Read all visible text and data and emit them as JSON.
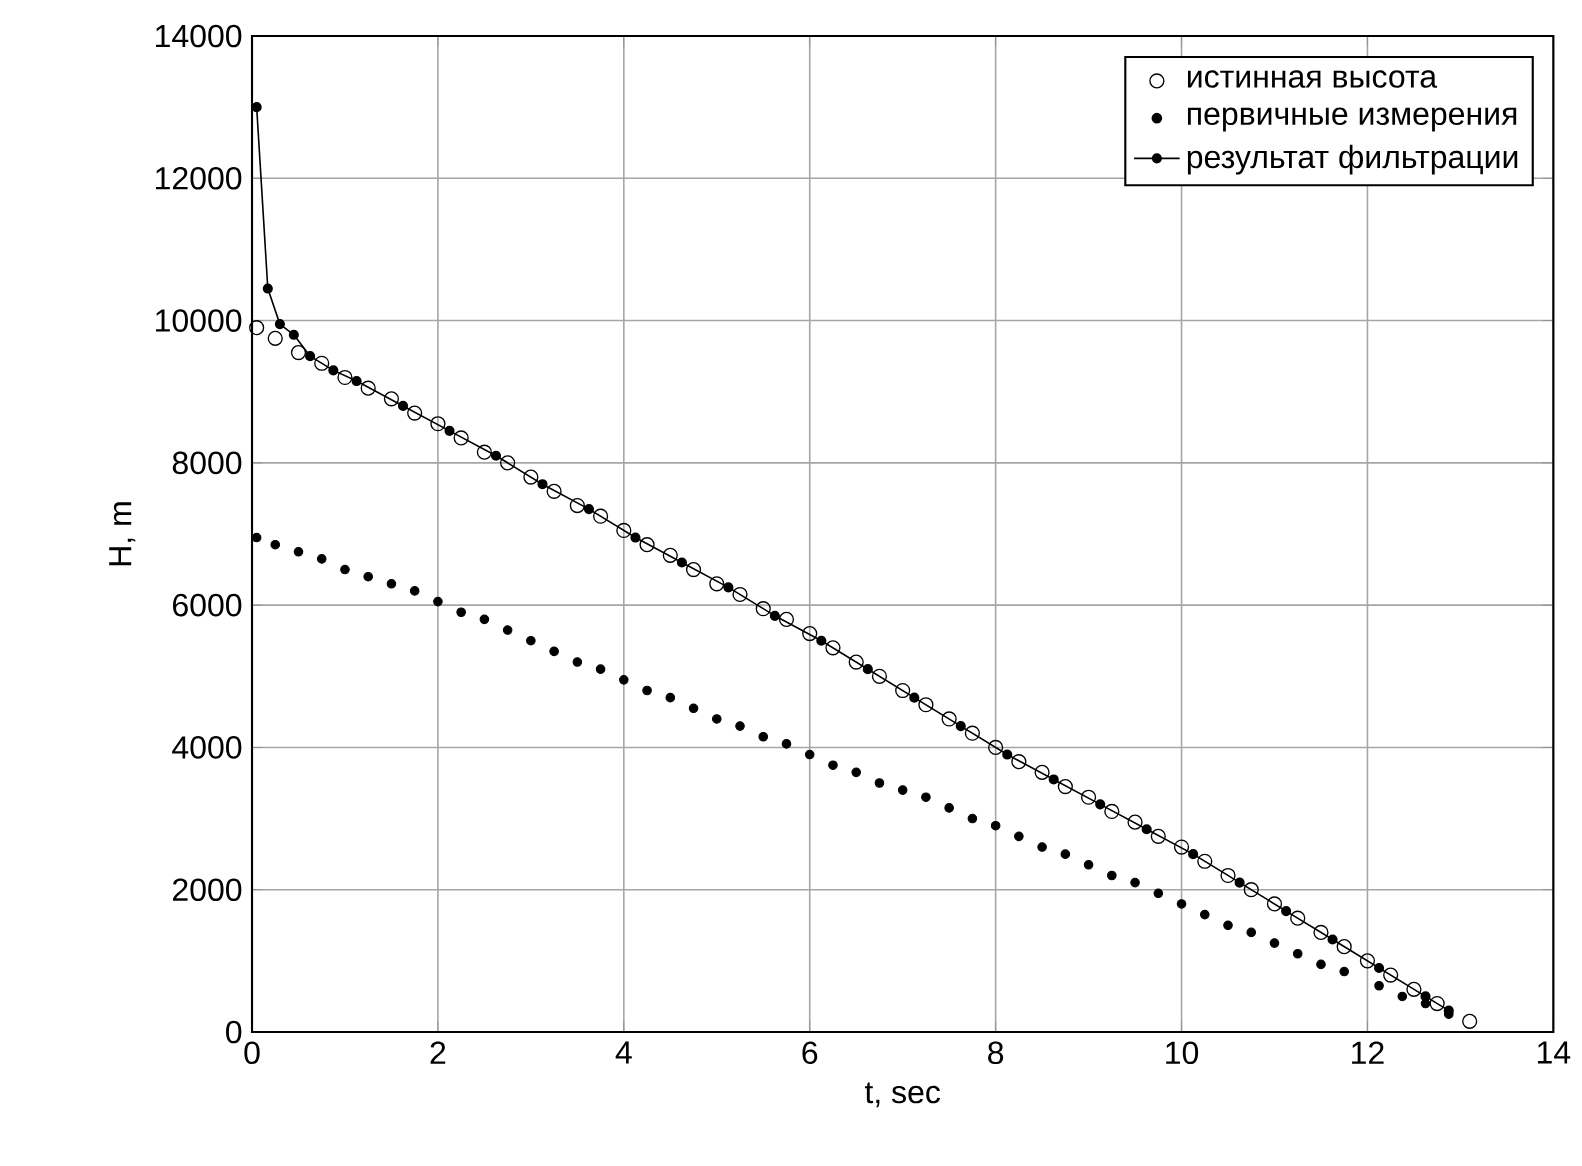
{
  "chart_data": {
    "type": "scatter",
    "xlabel": "t, sec",
    "ylabel": "H, m",
    "xlim": [
      0,
      14
    ],
    "ylim": [
      0,
      14000
    ],
    "xticks": [
      0,
      2,
      4,
      6,
      8,
      10,
      12,
      14
    ],
    "yticks": [
      0,
      2000,
      4000,
      6000,
      8000,
      10000,
      12000,
      14000
    ],
    "grid": true,
    "legend": "top right",
    "series": [
      {
        "name": "истинная высота",
        "type": "scatter",
        "marker": "circle",
        "color": "#000000",
        "x": [
          0.05,
          0.25,
          0.5,
          0.75,
          1.0,
          1.25,
          1.5,
          1.75,
          2.0,
          2.25,
          2.5,
          2.75,
          3.0,
          3.25,
          3.5,
          3.75,
          4.0,
          4.25,
          4.5,
          4.75,
          5.0,
          5.25,
          5.5,
          5.75,
          6.0,
          6.25,
          6.5,
          6.75,
          7.0,
          7.25,
          7.5,
          7.75,
          8.0,
          8.25,
          8.5,
          8.75,
          9.0,
          9.25,
          9.5,
          9.75,
          10.0,
          10.25,
          10.5,
          10.75,
          11.0,
          11.25,
          11.5,
          11.75,
          12.0,
          12.25,
          12.5,
          12.75,
          13.1
        ],
        "values": [
          9900,
          9750,
          9550,
          9400,
          9200,
          9050,
          8900,
          8700,
          8550,
          8350,
          8150,
          8000,
          7800,
          7600,
          7400,
          7250,
          7050,
          6850,
          6700,
          6500,
          6300,
          6150,
          5950,
          5800,
          5600,
          5400,
          5200,
          5000,
          4800,
          4600,
          4400,
          4200,
          4000,
          3800,
          3650,
          3450,
          3300,
          3100,
          2950,
          2750,
          2600,
          2400,
          2200,
          2000,
          1800,
          1600,
          1400,
          1200,
          1000,
          800,
          600,
          400,
          150
        ]
      },
      {
        "name": "первичные измерения",
        "type": "scatter",
        "marker": "dot",
        "color": "#000000",
        "x": [
          0.05,
          0.25,
          0.5,
          0.75,
          1.0,
          1.25,
          1.5,
          1.75,
          2.0,
          2.25,
          2.5,
          2.75,
          3.0,
          3.25,
          3.5,
          3.75,
          4.0,
          4.25,
          4.5,
          4.75,
          5.0,
          5.25,
          5.5,
          5.75,
          6.0,
          6.25,
          6.5,
          6.75,
          7.0,
          7.25,
          7.5,
          7.75,
          8.0,
          8.25,
          8.5,
          8.75,
          9.0,
          9.25,
          9.5,
          9.75,
          10.0,
          10.25,
          10.5,
          10.75,
          11.0,
          11.25,
          11.5,
          11.75,
          12.125,
          12.375,
          12.625,
          12.875
        ],
        "values": [
          6950,
          6850,
          6750,
          6650,
          6500,
          6400,
          6300,
          6200,
          6050,
          5900,
          5800,
          5650,
          5500,
          5350,
          5200,
          5100,
          4950,
          4800,
          4700,
          4550,
          4400,
          4300,
          4150,
          4050,
          3900,
          3750,
          3650,
          3500,
          3400,
          3300,
          3150,
          3000,
          2900,
          2750,
          2600,
          2500,
          2350,
          2200,
          2100,
          1950,
          1800,
          1650,
          1500,
          1400,
          1250,
          1100,
          950,
          850,
          650,
          500,
          400,
          250
        ]
      },
      {
        "name": "результат фильтрации",
        "type": "line",
        "marker": "dot",
        "color": "#000000",
        "x": [
          0.05,
          0.17,
          0.3,
          0.45,
          0.625,
          0.875,
          1.125,
          1.625,
          2.125,
          2.625,
          3.125,
          3.625,
          4.125,
          4.625,
          5.125,
          5.625,
          6.125,
          6.625,
          7.125,
          7.625,
          8.125,
          8.625,
          9.125,
          9.625,
          10.125,
          10.625,
          11.125,
          11.625,
          12.125,
          12.625,
          12.875
        ],
        "values": [
          13000,
          10450,
          9950,
          9800,
          9500,
          9300,
          9150,
          8800,
          8450,
          8100,
          7700,
          7350,
          6950,
          6600,
          6250,
          5850,
          5500,
          5100,
          4700,
          4300,
          3900,
          3550,
          3200,
          2850,
          2500,
          2100,
          1700,
          1300,
          900,
          500,
          300
        ]
      }
    ]
  }
}
